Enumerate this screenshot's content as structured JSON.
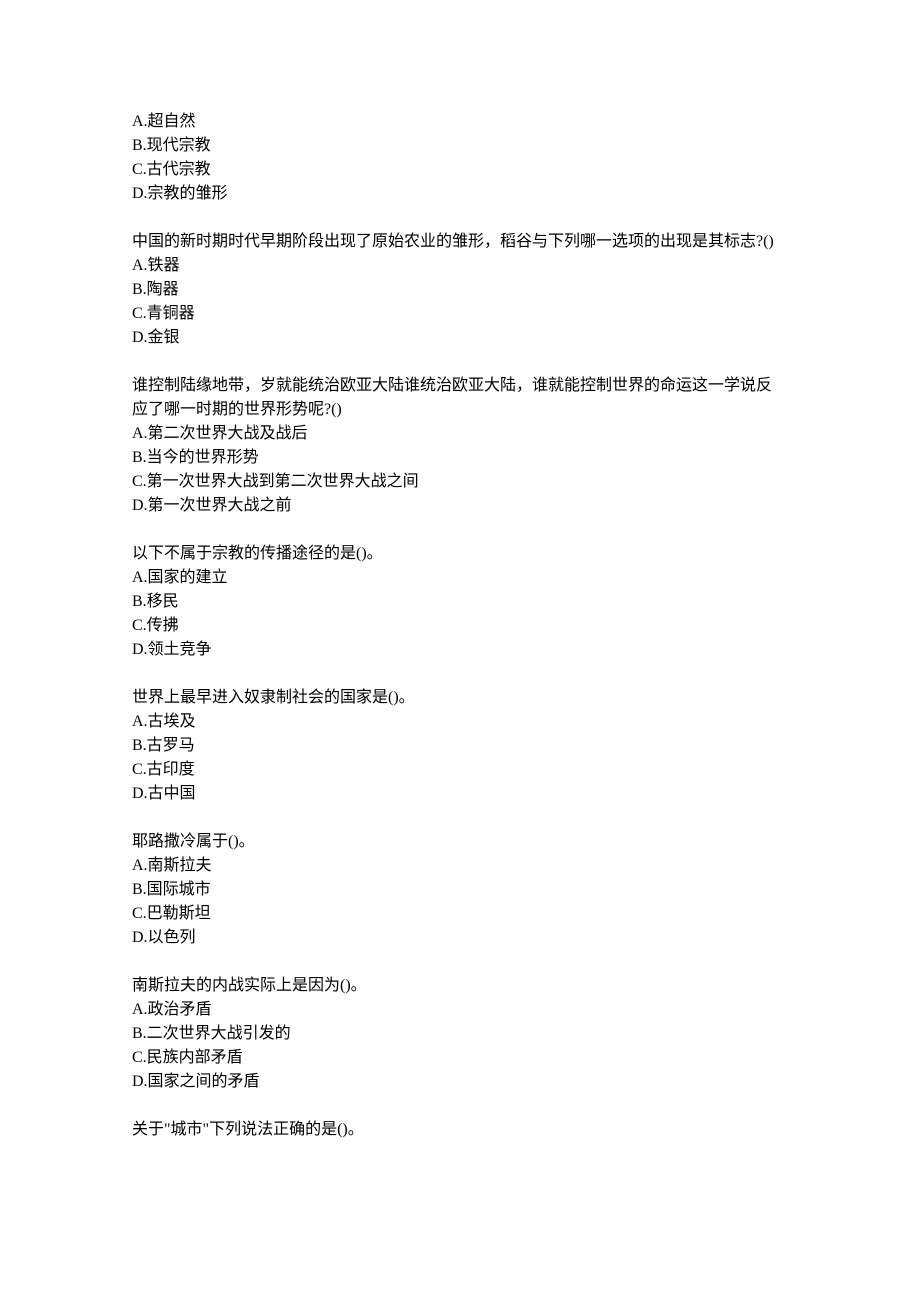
{
  "questions": [
    {
      "stem": "",
      "options": [
        "A.超自然",
        "B.现代宗教",
        "C.古代宗教",
        "D.宗教的雏形"
      ]
    },
    {
      "stem": "中国的新时期时代早期阶段出现了原始农业的雏形，稻谷与下列哪一选项的出现是其标志?()",
      "options": [
        "A.铁器",
        "B.陶器",
        "C.青铜器",
        "D.金银"
      ]
    },
    {
      "stem": "谁控制陆缘地带，岁就能统治欧亚大陆谁统治欧亚大陆，谁就能控制世界的命运这一学说反应了哪一时期的世界形势呢?()",
      "options": [
        "A.第二次世界大战及战后",
        "B.当今的世界形势",
        "C.第一次世界大战到第二次世界大战之间",
        "D.第一次世界大战之前"
      ]
    },
    {
      "stem": "以下不属于宗教的传播途径的是()。",
      "options": [
        "A.国家的建立",
        "B.移民",
        "C.传拂",
        "D.领土竞争"
      ]
    },
    {
      "stem": "世界上最早进入奴隶制社会的国家是()。",
      "options": [
        "A.古埃及",
        "B.古罗马",
        "C.古印度",
        "D.古中国"
      ]
    },
    {
      "stem": "耶路撒冷属于()。",
      "options": [
        "A.南斯拉夫",
        "B.国际城市",
        "C.巴勒斯坦",
        "D.以色列"
      ]
    },
    {
      "stem": "南斯拉夫的内战实际上是因为()。",
      "options": [
        "A.政治矛盾",
        "B.二次世界大战引发的",
        "C.民族内部矛盾",
        "D.国家之间的矛盾"
      ]
    },
    {
      "stem": "关于\"城市\"下列说法正确的是()。",
      "options": []
    }
  ]
}
